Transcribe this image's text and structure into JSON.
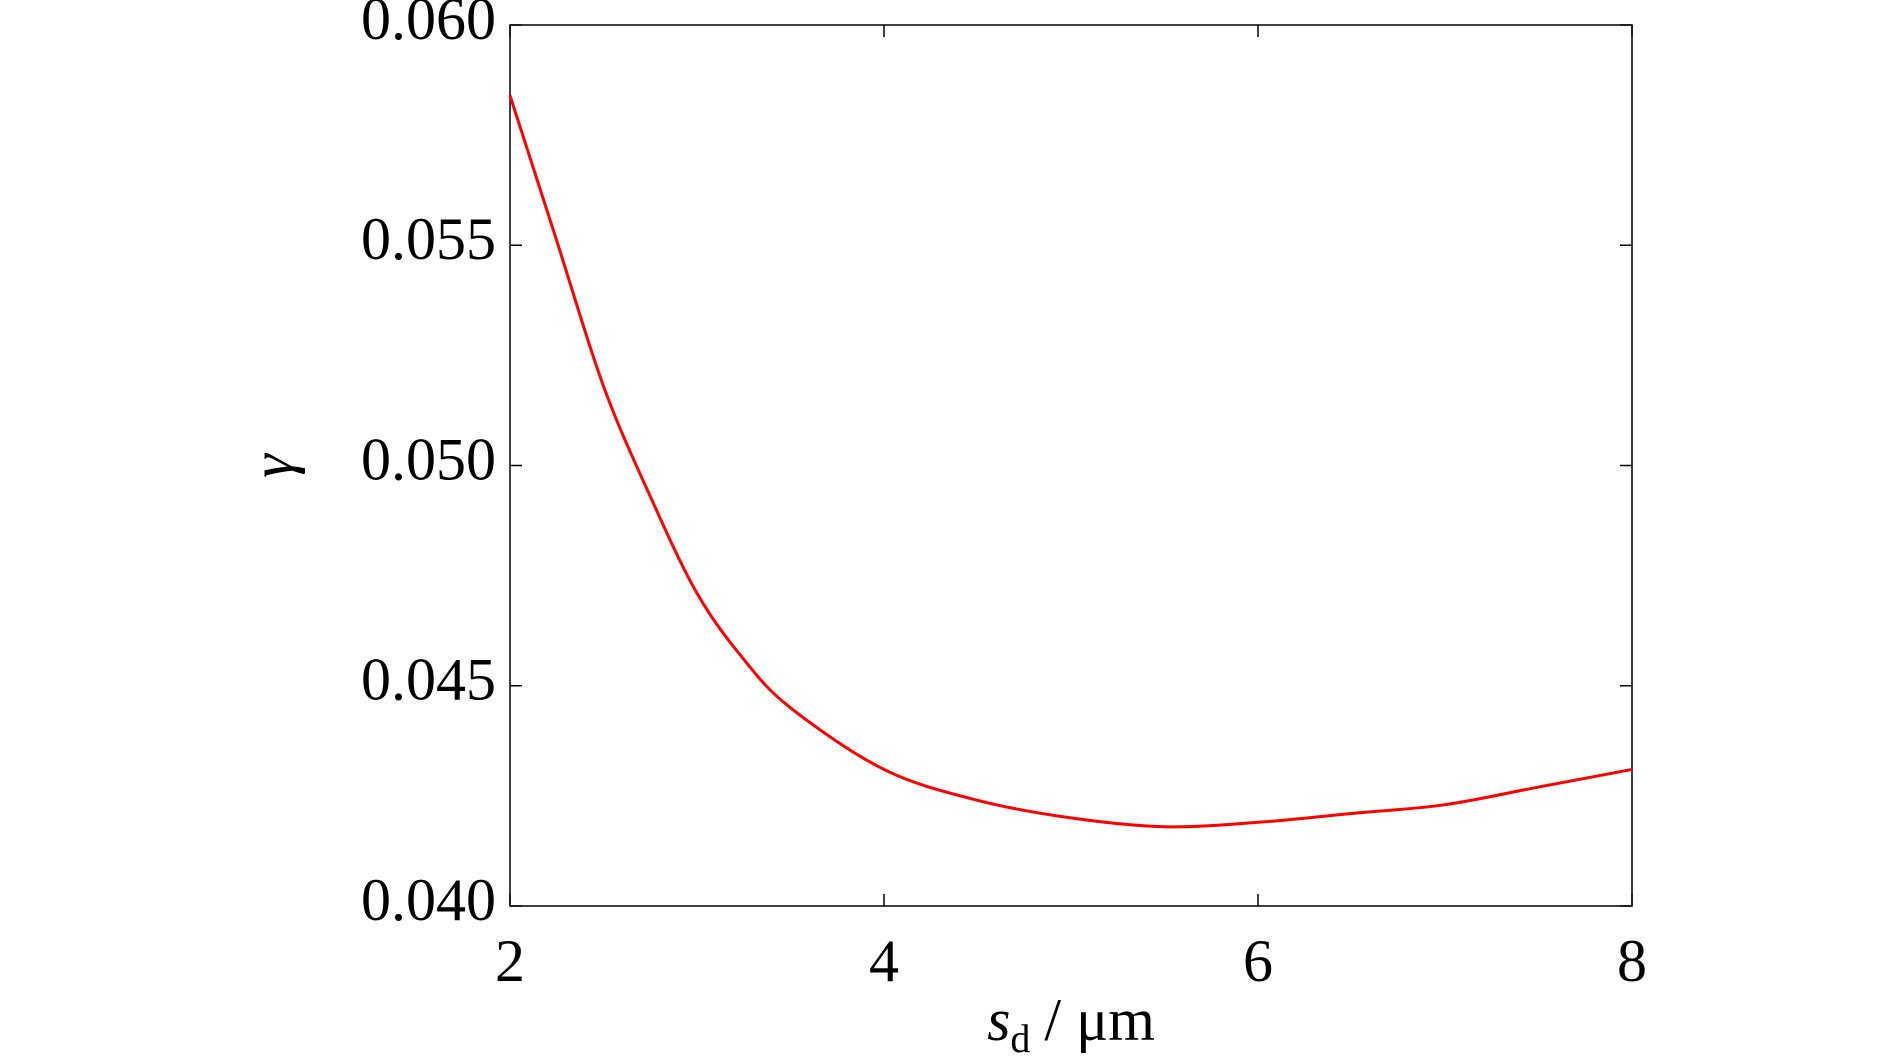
{
  "chart_data": {
    "type": "line",
    "x_label": {
      "symbol": "s",
      "subscript": "d",
      "unit": "/ μm"
    },
    "y_label": "γ",
    "x": [
      2,
      2.25,
      2.5,
      2.75,
      3,
      3.25,
      3.5,
      4,
      4.5,
      5,
      5.5,
      6,
      6.5,
      7,
      7.5,
      8
    ],
    "series": [
      {
        "color": "#ff0000",
        "values": [
          0.0584,
          0.0551,
          0.0518,
          0.0493,
          0.0471,
          0.0456,
          0.0445,
          0.0431,
          0.0424,
          0.042,
          0.0418,
          0.0419,
          0.0421,
          0.0423,
          0.0427,
          0.0431
        ]
      }
    ],
    "xlim": [
      2,
      8
    ],
    "xticks": [
      2,
      4,
      6,
      8
    ],
    "ylim": [
      0.04,
      0.06
    ],
    "yticks": [
      {
        "value": 0.04,
        "label": "0.040"
      },
      {
        "value": 0.045,
        "label": "0.045"
      },
      {
        "value": 0.05,
        "label": "0.050"
      },
      {
        "value": 0.055,
        "label": "0.055"
      },
      {
        "value": 0.06,
        "label": "0.060"
      }
    ],
    "grid": false
  }
}
